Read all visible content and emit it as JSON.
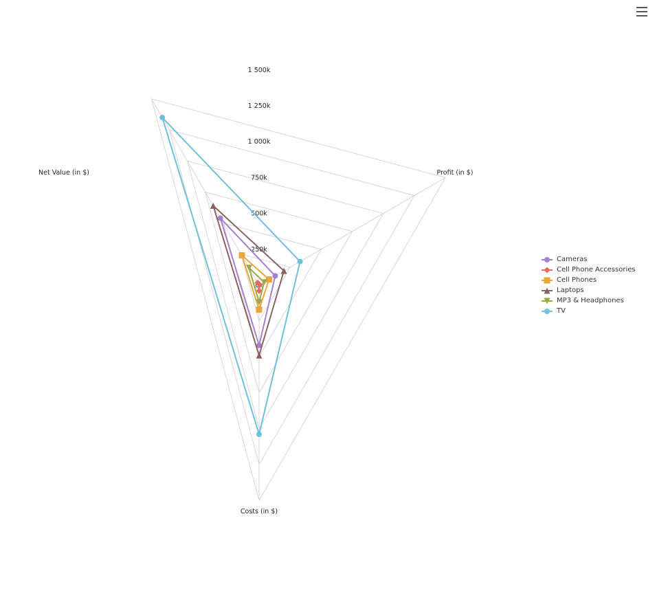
{
  "chart_data": {
    "type": "radar",
    "axes": [
      "Net Value (in $)",
      "Profit (in $)",
      "Costs (in $)"
    ],
    "tick_labels": [
      "0k",
      "250k",
      "500k",
      "750k",
      "1 000k",
      "1 250k",
      "1 500k"
    ],
    "rmax": 1500000,
    "series": [
      {
        "name": "Cameras",
        "color": "#a57fd0",
        "marker": "circle",
        "values": [
          540000,
          130000,
          420000
        ]
      },
      {
        "name": "Cell Phone Accessories",
        "color": "#e86a5c",
        "marker": "diamond",
        "values": [
          20000,
          5000,
          40000
        ]
      },
      {
        "name": "Cell Phones",
        "color": "#e9a63a",
        "marker": "square",
        "values": [
          240000,
          80000,
          170000
        ]
      },
      {
        "name": "Laptops",
        "color": "#8a6262",
        "marker": "triangle",
        "values": [
          640000,
          200000,
          490000
        ]
      },
      {
        "name": "MP3 & Headphones",
        "color": "#9aa744",
        "marker": "triangle-down",
        "values": [
          140000,
          40000,
          120000
        ]
      },
      {
        "name": "TV",
        "color": "#6fc0dc",
        "marker": "circle",
        "values": [
          1350000,
          330000,
          1040000
        ]
      }
    ]
  }
}
